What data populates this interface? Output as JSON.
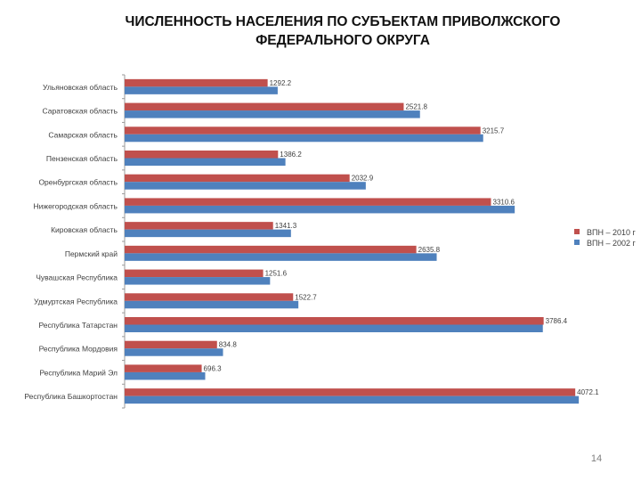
{
  "slide": {
    "title_line1": "ЧИСЛЕННОСТЬ НАСЕЛЕНИЯ ПО СУБЪЕКТАМ ПРИВОЛЖСКОГО",
    "title_line2": "ФЕДЕРАЛЬНОГО ОКРУГА",
    "page_number": "14"
  },
  "chart_data": {
    "type": "bar",
    "orientation": "horizontal",
    "categories": [
      "Ульяновская область",
      "Саратовская область",
      "Самарская область",
      "Пензенская область",
      "Оренбургская область",
      "Нижегородская область",
      "Кировская область",
      "Пермский край",
      "Чувашская Республика",
      "Удмуртская Республика",
      "Республика Татарстан",
      "Республика Мордовия",
      "Республика Марий Эл",
      "Республика Башкортостан"
    ],
    "series": [
      {
        "name": "ВПН – 2010 г",
        "color": "#c0504d",
        "values": [
          1292.2,
          2521.8,
          3215.7,
          1386.2,
          2032.9,
          3310.6,
          1341.3,
          2635.8,
          1251.6,
          1522.7,
          3786.4,
          834.8,
          696.3,
          4072.1
        ],
        "labels": [
          "1292.2",
          "2521.8",
          "3215.7",
          "1386.2",
          "2032.9",
          "3310.6",
          "1341.3",
          "2635.8",
          "1251.6",
          "1522.7",
          "3786.4",
          "834.8",
          "696.3",
          "4072.1"
        ]
      },
      {
        "name": "ВПН – 2002 г",
        "color": "#4f81bd",
        "values": [
          1383,
          2669,
          3240,
          1453,
          2179,
          3525,
          1503,
          2820,
          1314,
          1570,
          3779,
          889,
          728,
          4104
        ]
      }
    ],
    "xlim": [
      0,
      4500
    ],
    "legend": "right",
    "data_labels_on": "ВПН – 2010 г"
  }
}
